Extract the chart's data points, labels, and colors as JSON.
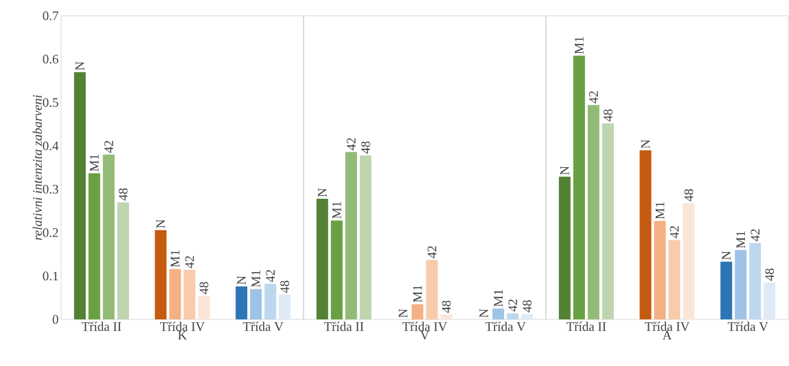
{
  "chart_data": [
    {
      "type": "bar",
      "xlabel": "K",
      "ylabel": "*relativni intenzita zabarveni*",
      "categories": [
        "Třída II",
        "Třída IV",
        "Třída V"
      ],
      "ylim": [
        0,
        0.7
      ],
      "yticks": [
        0,
        0.1,
        0.2,
        0.3,
        0.4,
        0.5,
        0.6,
        0.7
      ],
      "series": [
        {
          "name": "N",
          "colors": [
            "#548235",
            "#c55a11",
            "#2e75b6"
          ],
          "values": [
            0.57,
            0.206,
            0.076
          ]
        },
        {
          "name": "M1",
          "colors": [
            "#69a041",
            "#f4b183",
            "#9dc3e6"
          ],
          "values": [
            0.337,
            0.116,
            0.07
          ]
        },
        {
          "name": "42",
          "colors": [
            "#93bb78",
            "#f8cbad",
            "#bdd7ee"
          ],
          "values": [
            0.38,
            0.114,
            0.082
          ]
        },
        {
          "name": "48",
          "colors": [
            "#bed5b0",
            "#fbe5d6",
            "#deebf7"
          ],
          "values": [
            0.27,
            0.054,
            0.057
          ]
        }
      ]
    },
    {
      "type": "bar",
      "xlabel": "V",
      "categories": [
        "Třída II",
        "Třída IV",
        "Třída V"
      ],
      "ylim": [
        0,
        0.7
      ],
      "yticks": [
        0,
        0.1,
        0.2,
        0.3,
        0.4,
        0.5,
        0.6,
        0.7
      ],
      "tick_labels": "x",
      "series": [
        {
          "name": "N",
          "colors": [
            "#548235",
            "#c55a11",
            "#2e75b6"
          ],
          "values": [
            0.278,
            0,
            0
          ]
        },
        {
          "name": "M1",
          "colors": [
            "#69a041",
            "#f4b183",
            "#9dc3e6"
          ],
          "values": [
            0.228,
            0.035,
            0.025
          ]
        },
        {
          "name": "42",
          "colors": [
            "#93bb78",
            "#f8cbad",
            "#bdd7ee"
          ],
          "values": [
            0.386,
            0.137,
            0.014
          ]
        },
        {
          "name": "48",
          "colors": [
            "#bed5b0",
            "#fbe5d6",
            "#deebf7"
          ],
          "values": [
            0.378,
            0.011,
            0.012
          ]
        }
      ]
    },
    {
      "type": "bar",
      "xlabel": "A",
      "categories": [
        "Třída II",
        "Třída IV",
        "Třída V"
      ],
      "ylim": [
        0,
        0.7
      ],
      "yticks": [
        0,
        0.1,
        0.2,
        0.3,
        0.4,
        0.5,
        0.6,
        0.7
      ],
      "tick_labels": "x",
      "series": [
        {
          "name": "N",
          "colors": [
            "#548235",
            "#c55a11",
            "#2e75b6"
          ],
          "values": [
            0.329,
            0.39,
            0.133
          ]
        },
        {
          "name": "M1",
          "colors": [
            "#69a041",
            "#f4b183",
            "#9dc3e6"
          ],
          "values": [
            0.608,
            0.227,
            0.16
          ]
        },
        {
          "name": "42",
          "colors": [
            "#93bb78",
            "#f8cbad",
            "#bdd7ee"
          ],
          "values": [
            0.494,
            0.183,
            0.176
          ]
        },
        {
          "name": "48",
          "colors": [
            "#bed5b0",
            "#fbe5d6",
            "#deebf7"
          ],
          "values": [
            0.452,
            0.268,
            0.085
          ]
        }
      ]
    }
  ]
}
